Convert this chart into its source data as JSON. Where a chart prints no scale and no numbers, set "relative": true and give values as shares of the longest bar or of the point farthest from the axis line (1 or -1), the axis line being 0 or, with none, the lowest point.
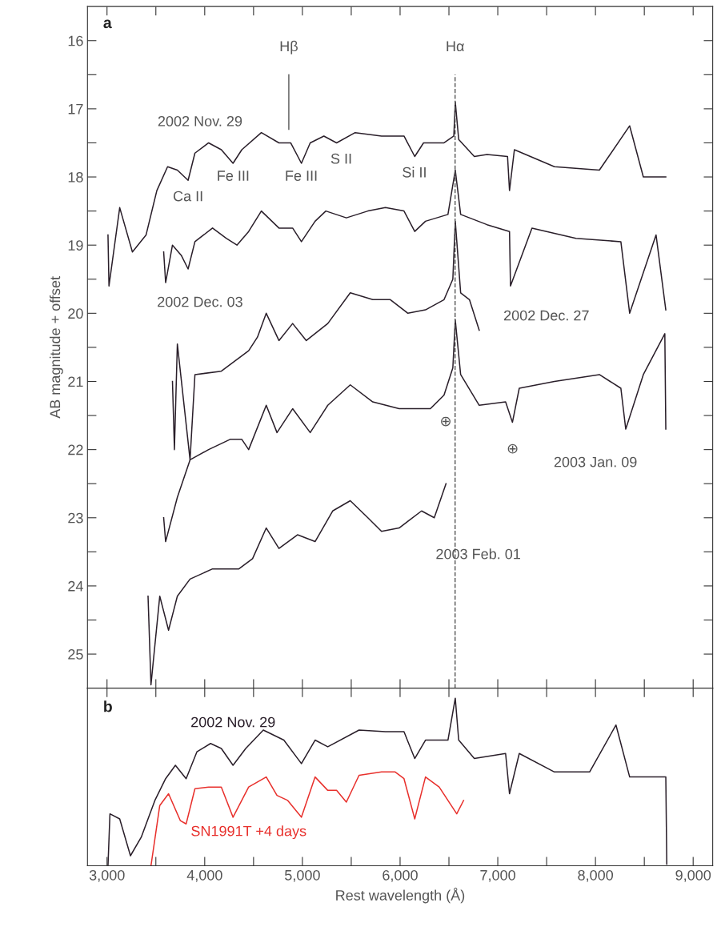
{
  "chart_data": [
    {
      "type": "line",
      "ylabel": "AB magnitude + offset",
      "xlim": [
        2800,
        9200
      ],
      "ylim": [
        25.5,
        15.5
      ],
      "tick_labels": "y",
      "line_style": "solid",
      "marker": "none",
      "xticks": [
        {
          "value": 3000,
          "label": null
        },
        {
          "value": 3500,
          "label": null
        },
        {
          "value": 4000,
          "label": null
        },
        {
          "value": 4500,
          "label": null
        },
        {
          "value": 5000,
          "label": null
        },
        {
          "value": 5500,
          "label": null
        },
        {
          "value": 6000,
          "label": null
        },
        {
          "value": 6500,
          "label": null
        },
        {
          "value": 7000,
          "label": null
        },
        {
          "value": 7500,
          "label": null
        },
        {
          "value": 8000,
          "label": null
        },
        {
          "value": 8500,
          "label": null
        },
        {
          "value": 9000,
          "label": null
        }
      ],
      "yticks": [
        16,
        {
          "value": 16.5,
          "label": null
        },
        17,
        {
          "value": 17.5,
          "label": null
        },
        18,
        {
          "value": 18.5,
          "label": null
        },
        19,
        {
          "value": 19.5,
          "label": null
        },
        20,
        {
          "value": 20.5,
          "label": null
        },
        21,
        {
          "value": 21.5,
          "label": null
        },
        22,
        {
          "value": 22.5,
          "label": null
        },
        23,
        {
          "value": 23.5,
          "label": null
        },
        24,
        {
          "value": 24.5,
          "label": null
        },
        25
      ],
      "ref_lines": [
        {
          "axis": "x",
          "value": 4861,
          "label": "Hβ",
          "line_style": "solid",
          "color": "#555555"
        },
        {
          "axis": "x",
          "value": 6563,
          "label": "Hα",
          "line_style": "dashed",
          "color": "#555555"
        }
      ],
      "annotations": [
        "a",
        "2002 Nov. 29",
        "Ca II",
        "Fe III",
        "Fe III",
        "S II",
        "Si II",
        "2002 Dec. 03",
        "2002 Dec. 27",
        "⊕",
        "⊕",
        "2003 Jan. 09",
        "2003 Feb. 01"
      ],
      "series": [
        {
          "color": "#2a1f2a",
          "x": [
            3010,
            3020,
            3130,
            3260,
            3400,
            3510,
            3620,
            3720,
            3830,
            3900,
            4040,
            4170,
            4290,
            4380,
            4580,
            4760,
            4880,
            4990,
            5080,
            5220,
            5350,
            5540,
            5810,
            6040,
            6150,
            6240,
            6450,
            6550,
            6565,
            6600,
            6760,
            6890,
            7100,
            7120,
            7170,
            7580,
            8040,
            8350,
            8490,
            8720
          ],
          "values": [
            18.85,
            19.6,
            18.45,
            19.1,
            18.85,
            18.2,
            17.85,
            17.9,
            18.05,
            17.65,
            17.5,
            17.6,
            17.8,
            17.6,
            17.35,
            17.5,
            17.5,
            17.8,
            17.5,
            17.4,
            17.5,
            17.35,
            17.4,
            17.4,
            17.7,
            17.5,
            17.5,
            17.4,
            16.9,
            17.45,
            17.7,
            17.67,
            17.7,
            18.2,
            17.6,
            17.85,
            17.9,
            17.25,
            18.0,
            18.0
          ]
        },
        {
          "color": "#2a1f2a",
          "x": [
            3580,
            3600,
            3670,
            3760,
            3830,
            3900,
            4080,
            4220,
            4330,
            4450,
            4580,
            4760,
            4900,
            4990,
            5130,
            5240,
            5450,
            5670,
            5850,
            6040,
            6150,
            6260,
            6490,
            6565,
            6620,
            6890,
            7120,
            7130,
            7350,
            7800,
            8260,
            8350,
            8620,
            8720
          ],
          "values": [
            19.1,
            19.55,
            19.0,
            19.15,
            19.35,
            18.95,
            18.75,
            18.9,
            19.0,
            18.8,
            18.5,
            18.75,
            18.75,
            18.95,
            18.65,
            18.5,
            18.6,
            18.5,
            18.45,
            18.5,
            18.8,
            18.65,
            18.55,
            17.9,
            18.55,
            18.7,
            18.8,
            19.6,
            18.75,
            18.9,
            18.95,
            20.0,
            18.85,
            19.95
          ]
        },
        {
          "color": "#2a1f2a",
          "x": [
            3670,
            3690,
            3720,
            3850,
            3900,
            4170,
            4450,
            4540,
            4630,
            4760,
            4900,
            5040,
            5260,
            5490,
            5720,
            5900,
            6080,
            6260,
            6450,
            6540,
            6565,
            6620,
            6710,
            6810
          ],
          "values": [
            21.0,
            22.0,
            20.45,
            22.15,
            20.9,
            20.85,
            20.55,
            20.35,
            20.0,
            20.4,
            20.15,
            20.4,
            20.15,
            19.7,
            19.8,
            19.8,
            20.0,
            19.95,
            19.8,
            19.5,
            18.65,
            19.7,
            19.8,
            20.25
          ]
        },
        {
          "color": "#2a1f2a",
          "x": [
            3580,
            3600,
            3720,
            3850,
            4040,
            4260,
            4380,
            4450,
            4630,
            4740,
            4900,
            5080,
            5260,
            5490,
            5720,
            5990,
            6310,
            6450,
            6540,
            6565,
            6620,
            6810,
            7080,
            7150,
            7220,
            7580,
            8040,
            8260,
            8310,
            8490,
            8710,
            8720
          ],
          "values": [
            23.0,
            23.35,
            22.7,
            22.15,
            22.0,
            21.85,
            21.85,
            22.0,
            21.35,
            21.75,
            21.4,
            21.75,
            21.35,
            21.05,
            21.3,
            21.4,
            21.4,
            21.2,
            20.8,
            20.1,
            20.9,
            21.35,
            21.3,
            21.6,
            21.1,
            21.0,
            20.9,
            21.1,
            21.7,
            20.9,
            20.3,
            21.7
          ]
        },
        {
          "color": "#2a1f2a",
          "x": [
            3420,
            3450,
            3540,
            3630,
            3720,
            3850,
            4080,
            4350,
            4490,
            4630,
            4760,
            4950,
            5130,
            5310,
            5490,
            5670,
            5810,
            5990,
            6220,
            6350,
            6470
          ],
          "values": [
            24.15,
            25.45,
            24.15,
            24.65,
            24.15,
            23.9,
            23.75,
            23.75,
            23.6,
            23.15,
            23.45,
            23.25,
            23.35,
            22.9,
            22.75,
            23.0,
            23.2,
            23.15,
            22.9,
            23.0,
            22.5
          ]
        }
      ]
    },
    {
      "type": "line",
      "relative": true,
      "xlabel": "Rest wavelength (Å)",
      "xlim": [
        2800,
        9200
      ],
      "tick_labels": "x",
      "line_style": "solid",
      "marker": "none",
      "xticks": [
        {
          "value": 3000,
          "label": "3,000"
        },
        {
          "value": 3500,
          "label": null
        },
        {
          "value": 4000,
          "label": "4,000"
        },
        {
          "value": 4500,
          "label": null
        },
        {
          "value": 5000,
          "label": "5,000"
        },
        {
          "value": 5500,
          "label": null
        },
        {
          "value": 6000,
          "label": "6,000"
        },
        {
          "value": 6500,
          "label": null
        },
        {
          "value": 7000,
          "label": "7,000"
        },
        {
          "value": 7500,
          "label": null
        },
        {
          "value": 8000,
          "label": "8,000"
        },
        {
          "value": 8500,
          "label": null
        },
        {
          "value": 9000,
          "label": "9,000"
        }
      ],
      "annotations": [
        "b"
      ],
      "series": [
        {
          "name": "2002 Nov. 29",
          "color": "#2a1f2a",
          "x": [
            3010,
            3030,
            3130,
            3240,
            3350,
            3490,
            3600,
            3700,
            3810,
            3920,
            4060,
            4170,
            4290,
            4420,
            4600,
            4810,
            4990,
            5130,
            5260,
            5580,
            5850,
            6040,
            6150,
            6260,
            6490,
            6565,
            6600,
            6760,
            7080,
            7120,
            7220,
            7580,
            7940,
            8210,
            8350,
            8490,
            8720,
            8730
          ],
          "values": [
            0.0,
            0.31,
            0.28,
            0.06,
            0.17,
            0.39,
            0.52,
            0.6,
            0.52,
            0.68,
            0.73,
            0.7,
            0.6,
            0.7,
            0.81,
            0.75,
            0.61,
            0.75,
            0.71,
            0.81,
            0.8,
            0.8,
            0.64,
            0.75,
            0.75,
            1.0,
            0.75,
            0.64,
            0.67,
            0.43,
            0.67,
            0.56,
            0.56,
            0.84,
            0.53,
            0.53,
            0.53,
            0.01
          ]
        },
        {
          "name": "SN1991T +4 days",
          "color": "#e8302c",
          "x": [
            3450,
            3540,
            3630,
            3750,
            3810,
            3900,
            4040,
            4170,
            4290,
            4450,
            4630,
            4740,
            4850,
            4990,
            5130,
            5260,
            5350,
            5450,
            5580,
            5810,
            5950,
            6040,
            6150,
            6260,
            6400,
            6580,
            6650
          ],
          "values": [
            0.0,
            0.36,
            0.43,
            0.27,
            0.25,
            0.46,
            0.47,
            0.47,
            0.29,
            0.47,
            0.53,
            0.42,
            0.39,
            0.29,
            0.53,
            0.45,
            0.45,
            0.38,
            0.54,
            0.56,
            0.56,
            0.52,
            0.28,
            0.53,
            0.47,
            0.31,
            0.39
          ]
        }
      ]
    }
  ]
}
